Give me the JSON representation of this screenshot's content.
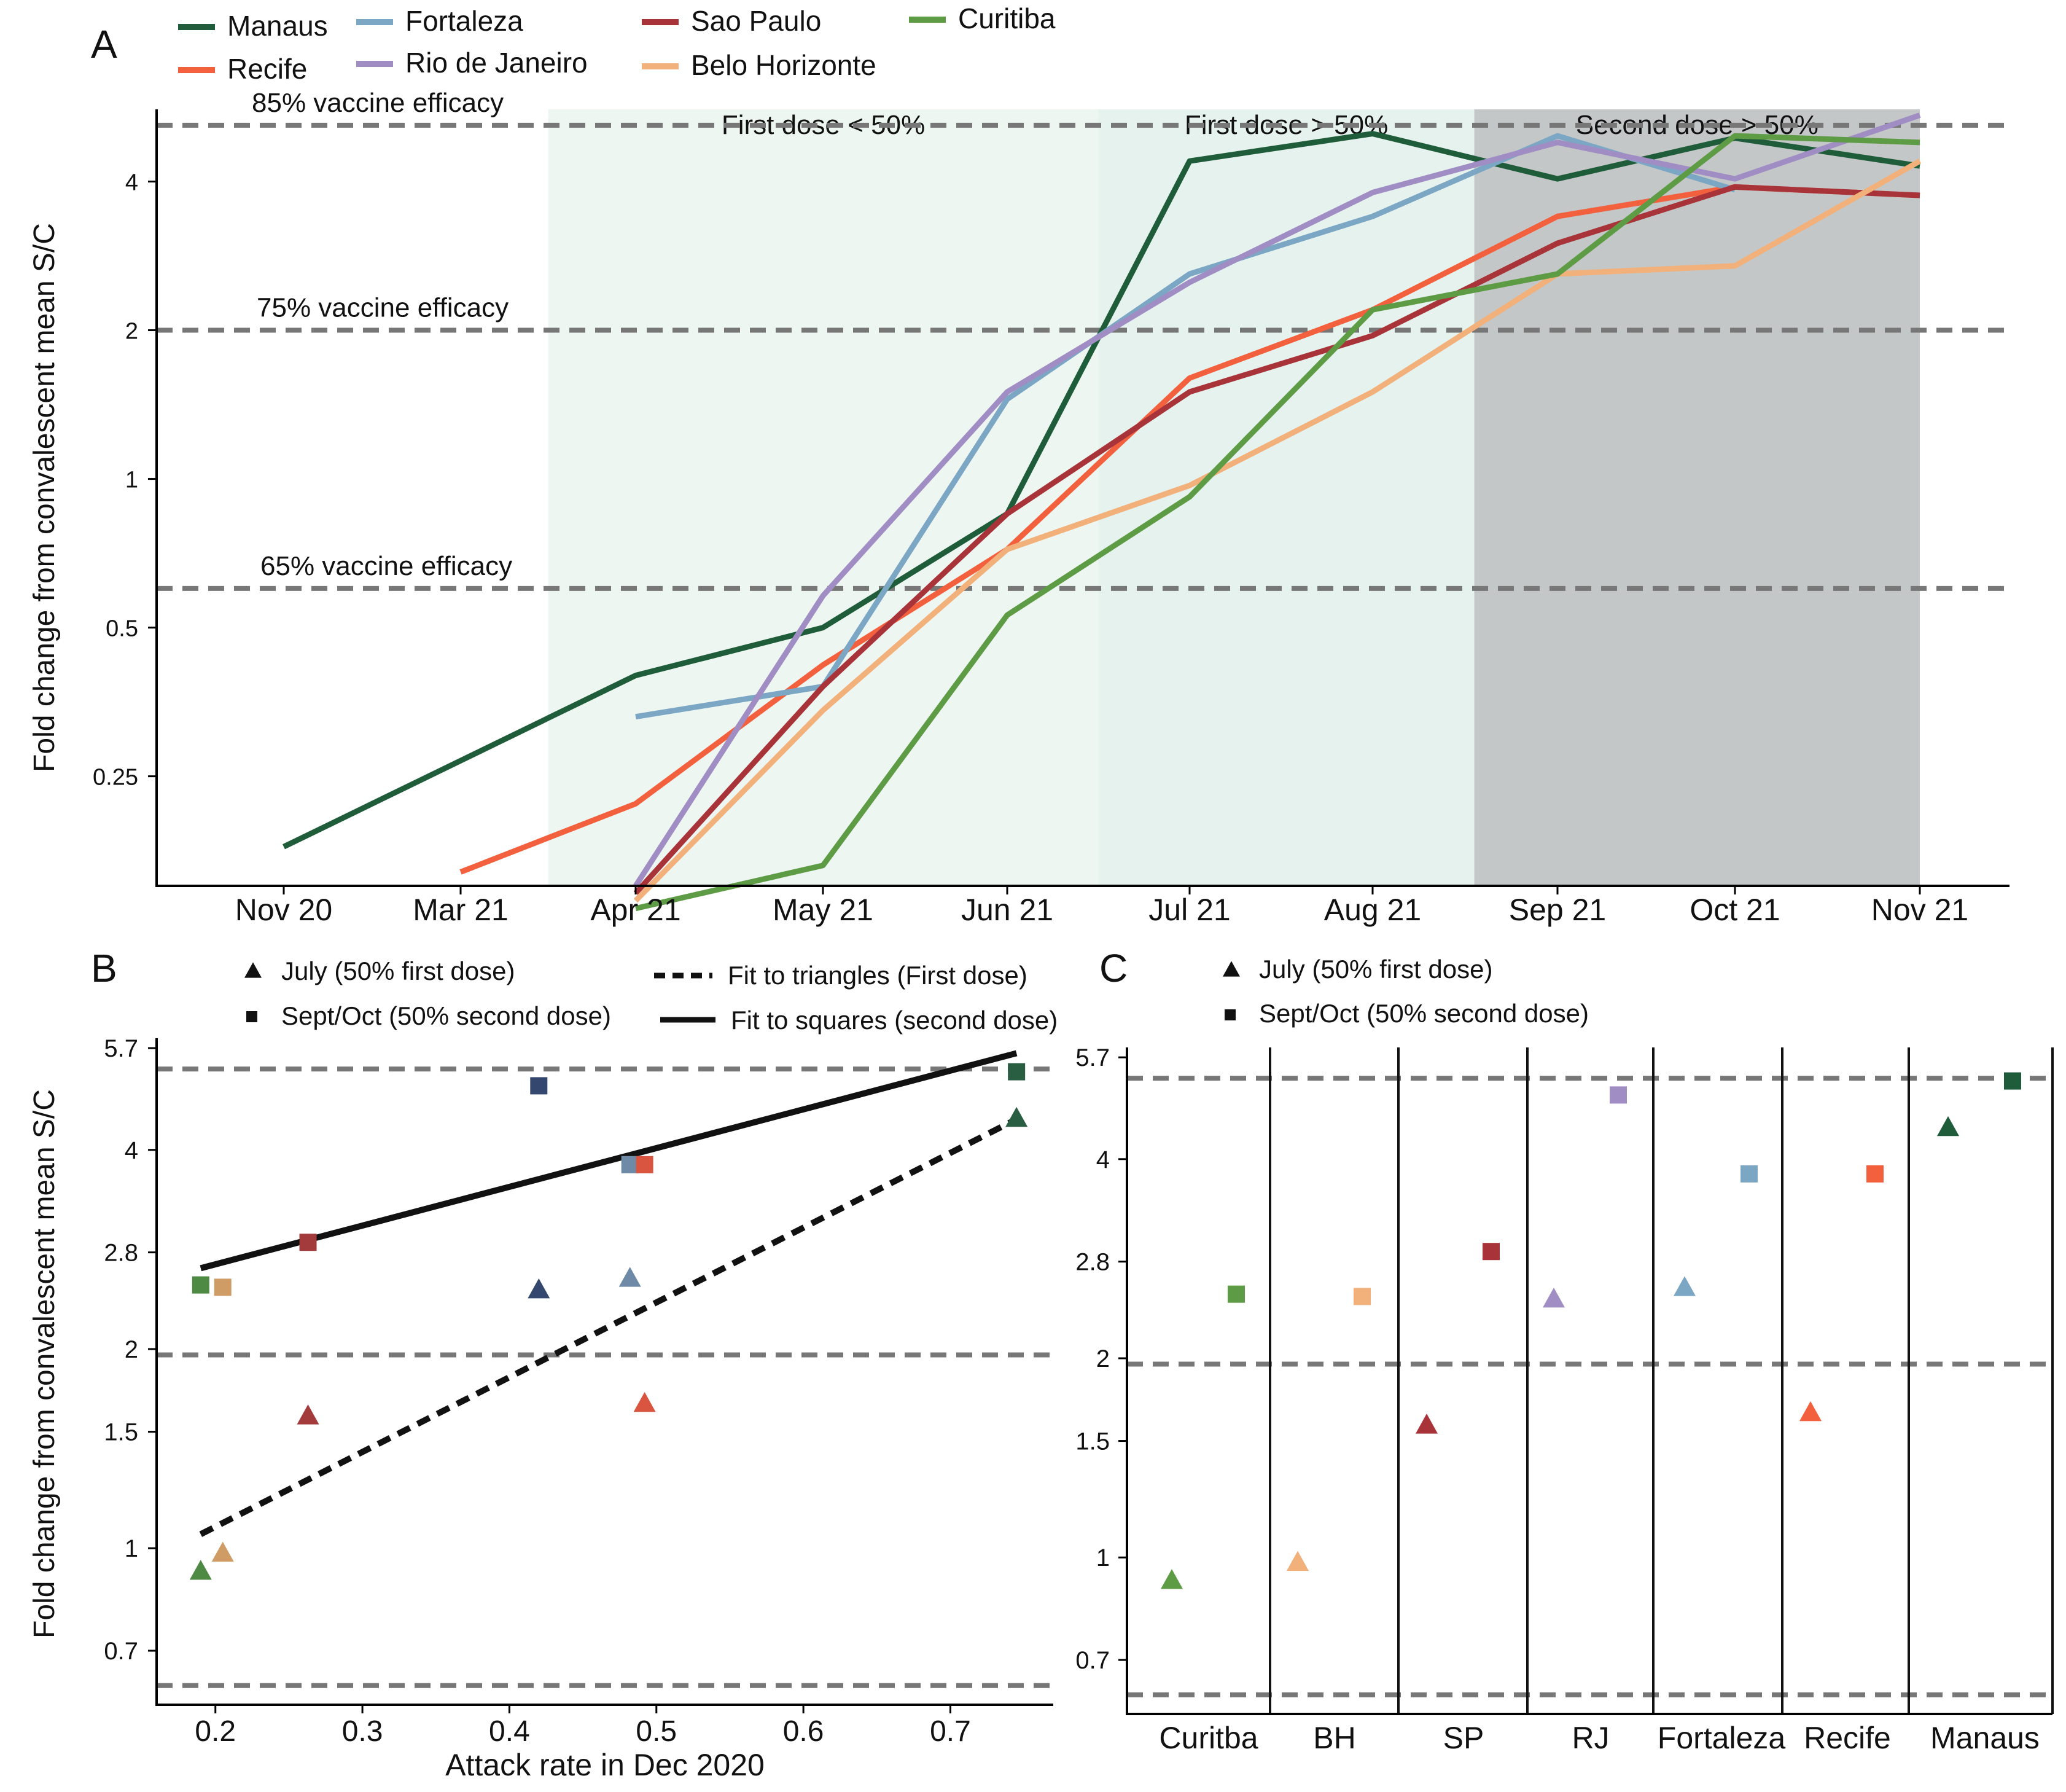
{
  "panels": {
    "a": "A",
    "b": "B",
    "c": "C"
  },
  "colors": {
    "Manaus": "#1f5c3a",
    "Recife": "#f2603d",
    "Fortaleza": "#7ba7c4",
    "Rio de Janeiro": "#a08dc4",
    "Sao Paulo": "#a8343a",
    "Belo Horizonte": "#f2b07a",
    "Curitiba": "#5e9b45",
    "BH": "#f2b07a",
    "SP": "#a8343a",
    "RJ": "#a08dc4",
    "Curitba": "#5e9b45",
    "dashed": "#777777",
    "shade_light": "#eef6f2",
    "shade_mid": "#e6f2ed",
    "shade_dark": "#c4c7c7"
  },
  "chart_data": [
    {
      "id": "A",
      "type": "line",
      "xlabel": "",
      "ylabel": "Fold change from convalescent mean S/C",
      "yscale": "log",
      "ylim": [
        0.15,
        5.6
      ],
      "categories": [
        "Nov 20",
        "Mar 21",
        "Apr 21",
        "May 21",
        "Jun 21",
        "Jul 21",
        "Aug 21",
        "Sep 21",
        "Oct 21",
        "Nov 21"
      ],
      "y_ticks": [
        {
          "value": 0.25,
          "label": "0.25"
        },
        {
          "value": 0.5,
          "label": "0.5"
        },
        {
          "value": 1,
          "label": "1"
        },
        {
          "value": 2,
          "label": "2"
        },
        {
          "value": 4,
          "label": "4"
        }
      ],
      "hlines": [
        {
          "value": 0.6,
          "label": "65% vaccine efficacy"
        },
        {
          "value": 2.0,
          "label": "75% vaccine efficacy"
        },
        {
          "value": 5.2,
          "label": "85% vaccine efficacy"
        }
      ],
      "shaded_periods": [
        {
          "from_index": 1.5,
          "to_index": 4.5,
          "label": "First dose < 50%",
          "tone": "light"
        },
        {
          "from_index": 4.5,
          "to_index": 6.55,
          "label": "First dose > 50%",
          "tone": "mid"
        },
        {
          "from_index": 6.55,
          "to_index": 9.5,
          "label": "Second dose > 50%",
          "tone": "dark"
        }
      ],
      "legend": [
        "Manaus",
        "Recife",
        "Fortaleza",
        "Rio de Janeiro",
        "Sao Paulo",
        "Belo Horizonte",
        "Curitiba"
      ],
      "series": [
        {
          "name": "Manaus",
          "x": [
            0,
            2,
            3,
            4,
            5,
            6,
            7,
            8,
            9
          ],
          "values": [
            0.18,
            0.4,
            0.5,
            0.85,
            4.4,
            5.0,
            4.05,
            4.9,
            4.3
          ]
        },
        {
          "name": "Recife",
          "x": [
            1,
            2,
            3,
            4,
            5,
            6,
            7,
            8,
            9
          ],
          "values": [
            0.16,
            0.22,
            0.42,
            0.72,
            1.6,
            2.2,
            3.4,
            3.9,
            3.75
          ]
        },
        {
          "name": "Fortaleza",
          "x": [
            2,
            3,
            4,
            5,
            6,
            7,
            8
          ],
          "values": [
            0.33,
            0.38,
            1.45,
            2.6,
            3.4,
            4.95,
            3.85
          ]
        },
        {
          "name": "Rio de Janeiro",
          "x": [
            2,
            3,
            4,
            5,
            6,
            7,
            8,
            9
          ],
          "values": [
            0.15,
            0.58,
            1.5,
            2.5,
            3.8,
            4.8,
            4.05,
            5.45
          ]
        },
        {
          "name": "Sao Paulo",
          "x": [
            2,
            3,
            4,
            5,
            6,
            7,
            8,
            9
          ],
          "values": [
            0.145,
            0.38,
            0.85,
            1.5,
            1.95,
            3.0,
            3.9,
            3.75
          ]
        },
        {
          "name": "Belo Horizonte",
          "x": [
            2,
            3,
            4,
            5,
            6,
            7,
            8,
            9
          ],
          "values": [
            0.14,
            0.34,
            0.72,
            0.97,
            1.5,
            2.6,
            2.7,
            4.4
          ]
        },
        {
          "name": "Curitiba",
          "x": [
            2,
            3,
            4,
            5,
            6,
            7,
            8,
            9
          ],
          "values": [
            0.135,
            0.165,
            0.53,
            0.92,
            2.2,
            2.6,
            4.95,
            4.8
          ]
        }
      ]
    },
    {
      "id": "B",
      "type": "scatter",
      "xlabel": "Attack rate in Dec 2020",
      "ylabel": "Fold change from convalescent mean S/C",
      "yscale": "log",
      "xlim": [
        0.16,
        0.77
      ],
      "ylim": [
        0.58,
        5.9
      ],
      "x_ticks": [
        0.2,
        0.3,
        0.4,
        0.5,
        0.6,
        0.7
      ],
      "x_tick_labels": [
        "0.2",
        "0.3",
        "0.4",
        "0.5",
        "0.6",
        "0.7"
      ],
      "y_ticks": [
        {
          "value": 0.7,
          "label": "0.7"
        },
        {
          "value": 1,
          "label": "1"
        },
        {
          "value": 1.5,
          "label": "1.5"
        },
        {
          "value": 2,
          "label": "2"
        },
        {
          "value": 2.8,
          "label": "2.8"
        },
        {
          "value": 4,
          "label": "4"
        },
        {
          "value": 5.7,
          "label": "5.7"
        }
      ],
      "hlines": [
        0.62,
        1.96,
        5.3
      ],
      "legend": {
        "triangle": "July (50% first dose)",
        "square": "Sept/Oct (50% second dose)",
        "dashed": "Fit to triangles (First dose)",
        "solid": "Fit to squares (second dose)"
      },
      "triangles": [
        {
          "city": "Curitiba",
          "x": 0.19,
          "y": 0.92
        },
        {
          "city": "Belo Horizonte",
          "x": 0.205,
          "y": 0.98
        },
        {
          "city": "Sao Paulo",
          "x": 0.263,
          "y": 1.58
        },
        {
          "city": "Rio de Janeiro",
          "x": 0.42,
          "y": 2.45
        },
        {
          "city": "Fortaleza",
          "x": 0.482,
          "y": 2.55
        },
        {
          "city": "Recife",
          "x": 0.492,
          "y": 1.65
        },
        {
          "city": "Manaus",
          "x": 0.745,
          "y": 4.45
        }
      ],
      "squares": [
        {
          "city": "Curitiba",
          "x": 0.19,
          "y": 2.5
        },
        {
          "city": "Belo Horizonte",
          "x": 0.205,
          "y": 2.48
        },
        {
          "city": "Sao Paulo",
          "x": 0.263,
          "y": 2.9
        },
        {
          "city": "Rio de Janeiro",
          "x": 0.42,
          "y": 5.0
        },
        {
          "city": "Fortaleza",
          "x": 0.482,
          "y": 3.8
        },
        {
          "city": "Recife",
          "x": 0.492,
          "y": 3.8
        },
        {
          "city": "Manaus",
          "x": 0.745,
          "y": 5.25
        }
      ],
      "fit_triangles": {
        "x": [
          0.19,
          0.745
        ],
        "y": [
          1.05,
          4.45
        ]
      },
      "fit_squares": {
        "x": [
          0.19,
          0.745
        ],
        "y": [
          2.65,
          5.6
        ]
      }
    },
    {
      "id": "C",
      "type": "scatter",
      "yscale": "log",
      "ylim": [
        0.58,
        5.9
      ],
      "categories": [
        "Curitba",
        "BH",
        "SP",
        "RJ",
        "Fortaleza",
        "Recife",
        "Manaus"
      ],
      "y_ticks": [
        {
          "value": 0.7,
          "label": "0.7"
        },
        {
          "value": 1,
          "label": "1"
        },
        {
          "value": 1.5,
          "label": "1.5"
        },
        {
          "value": 2,
          "label": "2"
        },
        {
          "value": 2.8,
          "label": "2.8"
        },
        {
          "value": 4,
          "label": "4"
        },
        {
          "value": 5.7,
          "label": "5.7"
        }
      ],
      "hlines": [
        0.62,
        1.96,
        5.3
      ],
      "legend": {
        "triangle": "July (50% first dose)",
        "square": "Sept/Oct (50% second dose)"
      },
      "triangles": [
        0.92,
        0.98,
        1.58,
        2.45,
        2.55,
        1.65,
        4.45
      ],
      "squares": [
        2.5,
        2.48,
        2.9,
        5.0,
        3.8,
        3.8,
        5.25
      ]
    }
  ]
}
